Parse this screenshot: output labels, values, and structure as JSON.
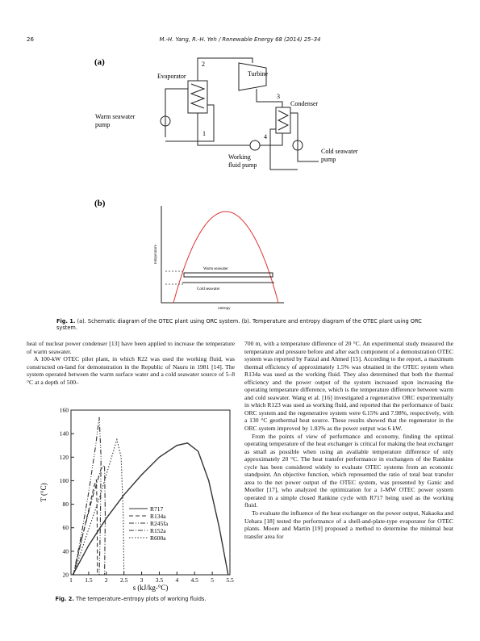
{
  "header": {
    "page_number": "26",
    "running_head": "M.-H. Yang, R.-H. Yeh / Renewable Energy 68 (2014) 25–34"
  },
  "figure1": {
    "panel_a": {
      "label": "(a)",
      "evaporator": "Evaporator",
      "turbine": "Turbine",
      "condenser": "Condenser",
      "warm_pump": [
        "Warm seawater",
        "pump"
      ],
      "working_pump": [
        "Working",
        "fluid pump"
      ],
      "cold_pump": [
        "Cold seawater",
        "pump"
      ],
      "states": [
        "1",
        "2",
        "3",
        "4"
      ]
    },
    "panel_b": {
      "label": "(b)",
      "y_label": "temperature",
      "x_label": "entropy",
      "warm": "Warm seawater",
      "cold": "Cold seawater"
    },
    "caption": {
      "label": "Fig. 1.",
      "text": "(a). Schematic diagram of the OTEC plant using ORC system. (b). Temperature and entropy diagram of the OTEC plant using ORC system."
    }
  },
  "body": {
    "left": [
      "heat of nuclear power condenser [13] have been applied to increase the temperature of warm seawater.",
      "A 100-kW OTEC pilot plant, in which R22 was used the working fluid, was constructed on-land for demonstration in the Republic of Nauru in 1981 [14]. The system operated between the warm surface water and a cold seawater source of 5–8 °C at a depth of 500–"
    ],
    "right": [
      "700 m, with a temperature difference of 20 °C. An experimental study measured the temperature and pressure before and after each component of a demonstration OTEC system was reported by Faizal and Ahmed [15]. According to the report, a maximum thermal efficiency of approximately 1.5% was obtained in the OTEC system when R134a was used as the working fluid. They also determined that both the thermal efficiency and the power output of the system increased upon increasing the operating temperature difference, which is the temperature difference between warm and cold seawater. Wang et al. [16] investigated a regenerative ORC experimentally in which R123 was used as working fluid, and reported that the performance of basic ORC system and the regenerative system were 6.15% and 7.98%, respectively, with a 130 °C geothermal heat source. These results showed that the regenerator in the ORC system improved by 1.83% as the power output was 6 kW.",
      "From the points of view of performance and economy, finding the optimal operating temperature of the heat exchanger is critical for making the heat exchanger as small as possible when using an available temperature difference of only approximately 20 °C. The heat transfer performance in exchangers of the Rankine cycle has been considered widely to evaluate OTEC systems from an economic standpoint. An objective function, which represented the ratio of total heat transfer area to the net power output of the OTEC system, was presented by Ganic and Moeller [17], who analyzed the optimization for a 1-MW OTEC power system operated in a simple closed Rankine cycle with R717 being used as the working fluid.",
      "To evaluate the influence of the heat exchanger on the power output, Nakaoka and Uehara [18] tested the performance of a shell-and-plate-type evaporator for OTEC plants. Moore and Martin [19] proposed a method to determine the minimal heat transfer area for"
    ]
  },
  "chart_data": {
    "type": "line",
    "x_label": "s (kJ/kg-°C)",
    "y_label": "T (°C)",
    "xlim": [
      1,
      5.5
    ],
    "ylim": [
      20,
      160
    ],
    "xticks": [
      1,
      1.5,
      2,
      2.5,
      3,
      3.5,
      4,
      4.5,
      5,
      5.5
    ],
    "yticks": [
      20,
      40,
      60,
      80,
      100,
      120,
      140,
      160
    ],
    "series": [
      {
        "name": "R717",
        "style": "solid",
        "color": "#333333",
        "x": [
          1.05,
          1.5,
          2.0,
          2.5,
          3.0,
          3.5,
          4.0,
          4.3,
          4.6,
          4.9,
          5.2,
          5.45
        ],
        "values": [
          20,
          45,
          68,
          88,
          105,
          120,
          130,
          132,
          125,
          100,
          60,
          20
        ]
      },
      {
        "name": "R134a",
        "style": "dashed",
        "color": "#333333",
        "x": [
          1.07,
          1.3,
          1.5,
          1.65,
          1.72,
          1.74,
          1.75
        ],
        "values": [
          20,
          50,
          75,
          95,
          101,
          70,
          20
        ]
      },
      {
        "name": "R245fa",
        "style": "dashdotdot",
        "color": "#333333",
        "x": [
          1.07,
          1.3,
          1.5,
          1.7,
          1.8,
          1.85,
          1.83,
          1.8
        ],
        "values": [
          20,
          55,
          90,
          130,
          154,
          120,
          60,
          20
        ]
      },
      {
        "name": "R152a",
        "style": "dashdot",
        "color": "#333333",
        "x": [
          1.07,
          1.3,
          1.6,
          1.85,
          1.95,
          1.97,
          1.95
        ],
        "values": [
          20,
          50,
          85,
          110,
          113,
          70,
          20
        ]
      },
      {
        "name": "R600a",
        "style": "dotted",
        "color": "#333333",
        "x": [
          1.07,
          1.4,
          1.8,
          2.1,
          2.3,
          2.42,
          2.48,
          2.5
        ],
        "values": [
          20,
          50,
          85,
          115,
          135,
          120,
          70,
          20
        ]
      }
    ],
    "caption": {
      "label": "Fig. 2.",
      "text": "The temperature–entropy plots of working fluids."
    }
  }
}
